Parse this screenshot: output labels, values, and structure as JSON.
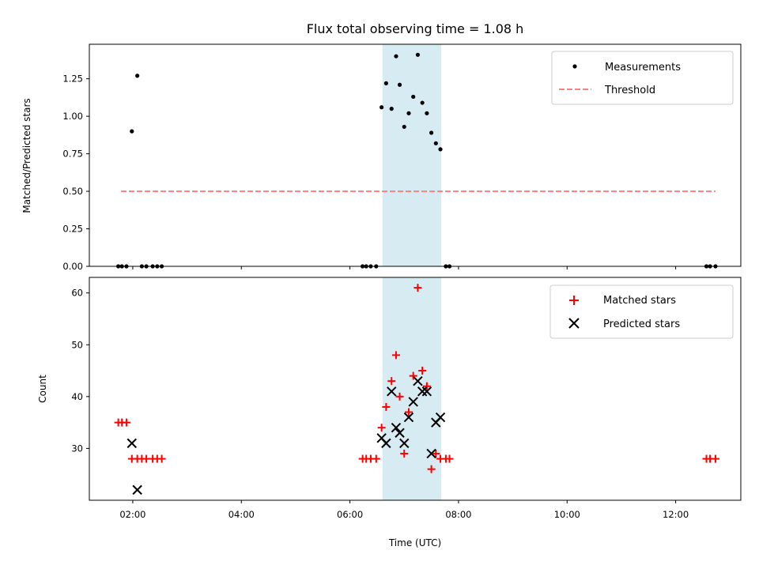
{
  "title": "Flux total observing time = 1.08 h",
  "top_panel": {
    "ylabel": "Matched/Predicted stars",
    "legend": {
      "measurements_label": "Measurements",
      "threshold_label": "Threshold"
    }
  },
  "bottom_panel": {
    "ylabel": "Count",
    "xlabel": "Time (UTC)",
    "legend": {
      "matched_label": "Matched stars",
      "predicted_label": "Predicted stars"
    }
  },
  "colors": {
    "measurements": "#000000",
    "threshold": "#ff7f7f",
    "matched": "#ff0000",
    "predicted": "#000000",
    "highlight": "#add8e6"
  },
  "chart_data": [
    {
      "type": "scatter",
      "panel": "top",
      "title": "Flux total observing time = 1.08 h",
      "ylabel": "Matched/Predicted stars",
      "xlim": [
        "01:12",
        "13:12"
      ],
      "ylim": [
        0,
        1.48
      ],
      "yticks": [
        0.0,
        0.25,
        0.5,
        0.75,
        1.0,
        1.25
      ],
      "ytick_labels": [
        "0.00",
        "0.25",
        "0.50",
        "0.75",
        "1.00",
        "1.25"
      ],
      "xticks": [
        "02:00",
        "04:00",
        "06:00",
        "08:00",
        "10:00",
        "12:00"
      ],
      "grid": false,
      "legend_position": "top-right",
      "highlight_span": [
        "06:36",
        "07:41"
      ],
      "threshold": {
        "y": 0.5,
        "x_start": "01:47",
        "x_end": "12:44"
      },
      "series": [
        {
          "name": "Measurements",
          "marker": "dot",
          "points": [
            [
              "01:44",
              0
            ],
            [
              "01:48",
              0
            ],
            [
              "01:53",
              0
            ],
            [
              "01:59",
              0.9
            ],
            [
              "02:05",
              1.27
            ],
            [
              "02:10",
              0
            ],
            [
              "02:15",
              0
            ],
            [
              "02:22",
              0
            ],
            [
              "02:27",
              0
            ],
            [
              "02:32",
              0
            ],
            [
              "06:14",
              0
            ],
            [
              "06:18",
              0
            ],
            [
              "06:23",
              0
            ],
            [
              "06:29",
              0
            ],
            [
              "06:35",
              1.06
            ],
            [
              "06:40",
              1.22
            ],
            [
              "06:46",
              1.05
            ],
            [
              "06:51",
              1.4
            ],
            [
              "06:55",
              1.21
            ],
            [
              "07:00",
              0.93
            ],
            [
              "07:05",
              1.02
            ],
            [
              "07:10",
              1.13
            ],
            [
              "07:15",
              1.41
            ],
            [
              "07:20",
              1.09
            ],
            [
              "07:25",
              1.02
            ],
            [
              "07:30",
              0.89
            ],
            [
              "07:35",
              0.82
            ],
            [
              "07:40",
              0.78
            ],
            [
              "07:46",
              0
            ],
            [
              "07:50",
              0
            ],
            [
              "12:34",
              0
            ],
            [
              "12:38",
              0
            ],
            [
              "12:44",
              0
            ]
          ]
        }
      ]
    },
    {
      "type": "scatter",
      "panel": "bottom",
      "xlabel": "Time (UTC)",
      "ylabel": "Count",
      "xlim": [
        "01:12",
        "13:12"
      ],
      "ylim": [
        20,
        63
      ],
      "yticks": [
        30,
        40,
        50,
        60
      ],
      "xticks": [
        "02:00",
        "04:00",
        "06:00",
        "08:00",
        "10:00",
        "12:00"
      ],
      "grid": false,
      "legend_position": "top-right",
      "highlight_span": [
        "06:36",
        "07:41"
      ],
      "series": [
        {
          "name": "Matched stars",
          "marker": "plus",
          "points": [
            [
              "01:44",
              35
            ],
            [
              "01:48",
              35
            ],
            [
              "01:53",
              35
            ],
            [
              "01:59",
              28
            ],
            [
              "02:05",
              28
            ],
            [
              "02:10",
              28
            ],
            [
              "02:15",
              28
            ],
            [
              "02:22",
              28
            ],
            [
              "02:27",
              28
            ],
            [
              "02:32",
              28
            ],
            [
              "06:14",
              28
            ],
            [
              "06:18",
              28
            ],
            [
              "06:23",
              28
            ],
            [
              "06:29",
              28
            ],
            [
              "06:35",
              34
            ],
            [
              "06:40",
              38
            ],
            [
              "06:46",
              43
            ],
            [
              "06:51",
              48
            ],
            [
              "06:55",
              40
            ],
            [
              "07:00",
              29
            ],
            [
              "07:05",
              37
            ],
            [
              "07:10",
              44
            ],
            [
              "07:15",
              61
            ],
            [
              "07:20",
              45
            ],
            [
              "07:25",
              42
            ],
            [
              "07:30",
              26
            ],
            [
              "07:35",
              29
            ],
            [
              "07:40",
              28
            ],
            [
              "07:46",
              28
            ],
            [
              "07:50",
              28
            ],
            [
              "12:34",
              28
            ],
            [
              "12:38",
              28
            ],
            [
              "12:44",
              28
            ]
          ]
        },
        {
          "name": "Predicted stars",
          "marker": "x",
          "points": [
            [
              "01:59",
              31
            ],
            [
              "02:05",
              22
            ],
            [
              "06:35",
              32
            ],
            [
              "06:40",
              31
            ],
            [
              "06:46",
              41
            ],
            [
              "06:51",
              34
            ],
            [
              "06:55",
              33
            ],
            [
              "07:00",
              31
            ],
            [
              "07:05",
              36
            ],
            [
              "07:10",
              39
            ],
            [
              "07:15",
              43
            ],
            [
              "07:20",
              41
            ],
            [
              "07:25",
              41
            ],
            [
              "07:30",
              29
            ],
            [
              "07:35",
              35
            ],
            [
              "07:40",
              36
            ]
          ]
        }
      ]
    }
  ]
}
